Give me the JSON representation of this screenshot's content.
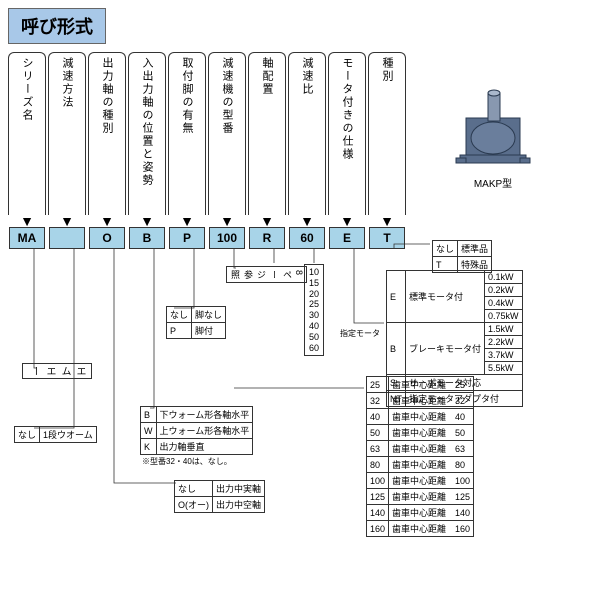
{
  "title": "呼び形式",
  "columns": [
    {
      "label": "シリーズ名",
      "code": "MA"
    },
    {
      "label": "減速方法",
      "code": ""
    },
    {
      "label": "出力軸の種別",
      "code": "O"
    },
    {
      "label": "入出力軸の位置と姿勢",
      "code": "B"
    },
    {
      "label": "取付脚の有無",
      "code": "P"
    },
    {
      "label": "減速機の型番",
      "code": "100"
    },
    {
      "label": "軸配置",
      "code": "R"
    },
    {
      "label": "減速比",
      "code": "60"
    },
    {
      "label": "モータ付きの仕様",
      "code": "E"
    },
    {
      "label": "種別",
      "code": "T"
    }
  ],
  "gear_label": "MAKP型",
  "gear_color": "#5a6e8c",
  "notes": {
    "series": "エムエー",
    "method": "1段ウオーム",
    "nashi": "なし",
    "leg": [
      [
        "なし",
        "脚なし"
      ],
      [
        "P",
        "脚付"
      ]
    ],
    "page": "8ページ参照",
    "posture": [
      [
        "B",
        "下ウォーム形各軸水平"
      ],
      [
        "W",
        "上ウォーム形各軸水平"
      ],
      [
        "K",
        "出力軸垂直"
      ]
    ],
    "posture_note": "※型番32・40は、なし。",
    "output": [
      [
        "なし",
        "出力中実軸"
      ],
      [
        "O(オー)",
        "出力中空軸"
      ]
    ],
    "ratio": [
      "10",
      "15",
      "20",
      "25",
      "30",
      "40",
      "50",
      "60"
    ],
    "motor_label": "指定モータ",
    "spec_rows": [
      [
        "なし",
        "標準品"
      ],
      [
        "T",
        "特殊品"
      ]
    ],
    "motor_e": [
      "E",
      "標準モータ付",
      "0.1kW",
      "0.2kW",
      "0.4kW",
      "0.75kW"
    ],
    "motor_b": [
      "B",
      "ブレーキモータ付",
      "1.5kW",
      "2.2kW",
      "3.7kW",
      "5.5kW"
    ],
    "motor_s": [
      "S",
      "サーボモータ対応"
    ],
    "motor_nt": [
      "NT",
      "指定モータアダプタ付"
    ],
    "dist": [
      [
        "25",
        "歯車中心距離　25"
      ],
      [
        "32",
        "歯車中心距離　32"
      ],
      [
        "40",
        "歯車中心距離　40"
      ],
      [
        "50",
        "歯車中心距離　50"
      ],
      [
        "63",
        "歯車中心距離　63"
      ],
      [
        "80",
        "歯車中心距離　80"
      ],
      [
        "100",
        "歯車中心距離　100"
      ],
      [
        "125",
        "歯車中心距離　125"
      ],
      [
        "140",
        "歯車中心距離　140"
      ],
      [
        "160",
        "歯車中心距離　160"
      ]
    ]
  },
  "colors": {
    "bracket_bg": "#fff",
    "code_bg": "#a8d4e8",
    "title_bg": "#a8c8e8"
  }
}
